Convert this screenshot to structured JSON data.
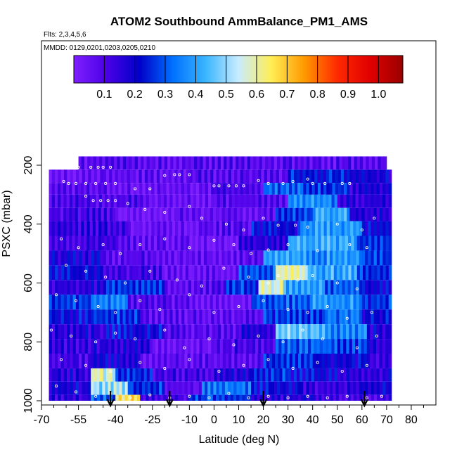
{
  "chart_data": {
    "type": "heatmap",
    "title": "ATOM2 Southbound AmmBalance_PM1_AMS",
    "subtitle_flights": "Flts: 2,3,4,5,6",
    "subtitle_dates": "MMDD: 0129,0201,0203,0205,0210",
    "xlabel": "Latitude (deg N)",
    "ylabel": "PSXC (mbar)",
    "xlim": [
      -70,
      90
    ],
    "ylim": [
      1000,
      0
    ],
    "x_ticks": [
      -70,
      -55,
      -40,
      -25,
      -10,
      0,
      10,
      20,
      30,
      40,
      50,
      60,
      70,
      80
    ],
    "x_minor_ticks": [
      -65,
      -60,
      -50,
      -45,
      -35,
      -30,
      -20,
      -15,
      -5,
      5,
      15,
      25,
      35,
      45,
      55,
      65,
      75,
      85
    ],
    "y_ticks": [
      200,
      400,
      600,
      800,
      1000
    ],
    "colorbar": {
      "min": 0.0,
      "max": 1.08,
      "ticks": [
        0.1,
        0.2,
        0.3,
        0.4,
        0.5,
        0.6,
        0.7,
        0.8,
        0.9,
        1.0
      ],
      "colors": [
        "#7f1fff",
        "#4a00e6",
        "#0000c8",
        "#0070ff",
        "#39b5ff",
        "#c8ecff",
        "#ffee55",
        "#ff9a00",
        "#ff2a00",
        "#e00000",
        "#9a0000"
      ]
    },
    "layers": [
      {
        "p_top": 170,
        "p_bot": 215,
        "lat_min": -55,
        "lat_max": 70,
        "segments": [
          [
            -55,
            70,
            0.12
          ]
        ]
      },
      {
        "p_top": 215,
        "p_bot": 260,
        "lat_min": -67,
        "lat_max": 72,
        "segments": [
          [
            -67,
            -45,
            0.08
          ],
          [
            -45,
            -10,
            0.1
          ],
          [
            -10,
            30,
            0.12
          ],
          [
            30,
            55,
            0.28
          ],
          [
            55,
            72,
            0.22
          ]
        ]
      },
      {
        "p_top": 260,
        "p_bot": 300,
        "lat_min": -67,
        "lat_max": 72,
        "segments": [
          [
            -67,
            -40,
            0.12
          ],
          [
            -40,
            0,
            0.09
          ],
          [
            0,
            20,
            0.15
          ],
          [
            20,
            35,
            0.35
          ],
          [
            35,
            55,
            0.3
          ],
          [
            55,
            72,
            0.2
          ]
        ]
      },
      {
        "p_top": 300,
        "p_bot": 345,
        "lat_min": -67,
        "lat_max": 72,
        "segments": [
          [
            -67,
            -30,
            0.14
          ],
          [
            -30,
            0,
            0.08
          ],
          [
            0,
            30,
            0.12
          ],
          [
            30,
            50,
            0.4
          ],
          [
            50,
            72,
            0.2
          ]
        ]
      },
      {
        "p_top": 345,
        "p_bot": 390,
        "lat_min": -67,
        "lat_max": 72,
        "segments": [
          [
            -67,
            -40,
            0.15
          ],
          [
            -40,
            -15,
            0.05
          ],
          [
            -15,
            25,
            0.1
          ],
          [
            25,
            40,
            0.3
          ],
          [
            40,
            55,
            0.45
          ],
          [
            55,
            72,
            0.2
          ]
        ]
      },
      {
        "p_top": 390,
        "p_bot": 440,
        "lat_min": -67,
        "lat_max": 72,
        "segments": [
          [
            -67,
            -35,
            0.18
          ],
          [
            -35,
            -5,
            0.08
          ],
          [
            -5,
            15,
            0.12
          ],
          [
            15,
            35,
            0.25
          ],
          [
            35,
            60,
            0.42
          ],
          [
            60,
            72,
            0.25
          ]
        ]
      },
      {
        "p_top": 440,
        "p_bot": 490,
        "lat_min": -67,
        "lat_max": 72,
        "segments": [
          [
            -67,
            -40,
            0.16
          ],
          [
            -40,
            -10,
            0.1
          ],
          [
            -10,
            10,
            0.06
          ],
          [
            10,
            30,
            0.2
          ],
          [
            30,
            58,
            0.45
          ],
          [
            58,
            72,
            0.3
          ]
        ]
      },
      {
        "p_top": 490,
        "p_bot": 540,
        "lat_min": -67,
        "lat_max": 72,
        "segments": [
          [
            -67,
            -45,
            0.22
          ],
          [
            -45,
            -15,
            0.12
          ],
          [
            -15,
            20,
            0.1
          ],
          [
            20,
            35,
            0.45
          ],
          [
            35,
            60,
            0.42
          ],
          [
            60,
            72,
            0.3
          ]
        ]
      },
      {
        "p_top": 540,
        "p_bot": 590,
        "lat_min": -67,
        "lat_max": 72,
        "segments": [
          [
            -67,
            -45,
            0.25
          ],
          [
            -45,
            -20,
            0.15
          ],
          [
            -20,
            10,
            0.1
          ],
          [
            10,
            25,
            0.35
          ],
          [
            25,
            38,
            0.62
          ],
          [
            38,
            58,
            0.45
          ],
          [
            58,
            72,
            0.3
          ]
        ]
      },
      {
        "p_top": 590,
        "p_bot": 640,
        "lat_min": -67,
        "lat_max": 72,
        "segments": [
          [
            -67,
            -45,
            0.2
          ],
          [
            -45,
            -20,
            0.3
          ],
          [
            -20,
            5,
            0.12
          ],
          [
            5,
            18,
            0.3
          ],
          [
            18,
            28,
            0.6
          ],
          [
            28,
            45,
            0.45
          ],
          [
            45,
            60,
            0.35
          ],
          [
            60,
            72,
            0.25
          ]
        ]
      },
      {
        "p_top": 640,
        "p_bot": 690,
        "lat_min": -67,
        "lat_max": 72,
        "segments": [
          [
            -67,
            -50,
            0.3
          ],
          [
            -50,
            -35,
            0.38
          ],
          [
            -35,
            -10,
            0.12
          ],
          [
            -10,
            15,
            0.08
          ],
          [
            15,
            40,
            0.35
          ],
          [
            40,
            60,
            0.42
          ],
          [
            60,
            72,
            0.3
          ]
        ]
      },
      {
        "p_top": 690,
        "p_bot": 740,
        "lat_min": -67,
        "lat_max": 72,
        "segments": [
          [
            -67,
            -50,
            0.25
          ],
          [
            -50,
            -30,
            0.3
          ],
          [
            -30,
            0,
            0.1
          ],
          [
            0,
            20,
            0.1
          ],
          [
            20,
            45,
            0.3
          ],
          [
            45,
            60,
            0.38
          ],
          [
            60,
            72,
            0.25
          ]
        ]
      },
      {
        "p_top": 740,
        "p_bot": 790,
        "lat_min": -67,
        "lat_max": 72,
        "segments": [
          [
            -67,
            -45,
            0.2
          ],
          [
            -45,
            -20,
            0.25
          ],
          [
            -20,
            10,
            0.12
          ],
          [
            10,
            25,
            0.2
          ],
          [
            25,
            45,
            0.5
          ],
          [
            45,
            62,
            0.4
          ],
          [
            62,
            72,
            0.22
          ]
        ]
      },
      {
        "p_top": 790,
        "p_bot": 840,
        "lat_min": -67,
        "lat_max": 72,
        "segments": [
          [
            -67,
            -50,
            0.18
          ],
          [
            -50,
            -25,
            0.2
          ],
          [
            -25,
            0,
            0.08
          ],
          [
            0,
            25,
            0.15
          ],
          [
            25,
            50,
            0.35
          ],
          [
            50,
            62,
            0.3
          ],
          [
            62,
            72,
            0.2
          ]
        ]
      },
      {
        "p_top": 840,
        "p_bot": 890,
        "lat_min": -67,
        "lat_max": 72,
        "segments": [
          [
            -67,
            -50,
            0.15
          ],
          [
            -50,
            -30,
            0.22
          ],
          [
            -30,
            0,
            0.1
          ],
          [
            0,
            20,
            0.12
          ],
          [
            20,
            40,
            0.3
          ],
          [
            40,
            62,
            0.25
          ],
          [
            62,
            72,
            0.18
          ]
        ]
      },
      {
        "p_top": 890,
        "p_bot": 935,
        "lat_min": -67,
        "lat_max": 72,
        "segments": [
          [
            -67,
            -50,
            0.2
          ],
          [
            -50,
            -40,
            0.62
          ],
          [
            -40,
            -25,
            0.3
          ],
          [
            -25,
            0,
            0.15
          ],
          [
            0,
            15,
            0.2
          ],
          [
            15,
            30,
            0.3
          ],
          [
            30,
            50,
            0.25
          ],
          [
            50,
            72,
            0.2
          ]
        ]
      },
      {
        "p_top": 935,
        "p_bot": 980,
        "lat_min": -67,
        "lat_max": 72,
        "segments": [
          [
            -67,
            -50,
            0.22
          ],
          [
            -50,
            -35,
            0.55
          ],
          [
            -35,
            -20,
            0.3
          ],
          [
            -20,
            -5,
            0.12
          ],
          [
            -5,
            15,
            0.38
          ],
          [
            15,
            35,
            0.25
          ],
          [
            35,
            60,
            0.18
          ],
          [
            60,
            72,
            0.22
          ]
        ]
      },
      {
        "p_top": 980,
        "p_bot": 1000,
        "lat_min": -67,
        "lat_max": 72,
        "segments": [
          [
            -67,
            -50,
            0.18
          ],
          [
            -50,
            -40,
            0.35
          ],
          [
            -40,
            -30,
            0.7
          ],
          [
            -30,
            -10,
            0.15
          ],
          [
            -10,
            15,
            0.3
          ],
          [
            15,
            40,
            0.2
          ],
          [
            40,
            72,
            0.15
          ]
        ]
      }
    ],
    "sample_points": [
      [
        -55,
        207
      ],
      [
        -50,
        207
      ],
      [
        -47,
        207
      ],
      [
        -45,
        207
      ],
      [
        -42,
        207
      ],
      [
        -61,
        255
      ],
      [
        -59,
        262
      ],
      [
        -56,
        262
      ],
      [
        -52,
        262
      ],
      [
        -48,
        262
      ],
      [
        -44,
        262
      ],
      [
        -40,
        262
      ],
      [
        -32,
        280
      ],
      [
        -26,
        280
      ],
      [
        -20,
        235
      ],
      [
        -16,
        232
      ],
      [
        -14,
        232
      ],
      [
        -10,
        232
      ],
      [
        0,
        270
      ],
      [
        2,
        270
      ],
      [
        6,
        270
      ],
      [
        9,
        270
      ],
      [
        12,
        270
      ],
      [
        18,
        252
      ],
      [
        22,
        262
      ],
      [
        28,
        262
      ],
      [
        32,
        255
      ],
      [
        38,
        247
      ],
      [
        40,
        262
      ],
      [
        45,
        262
      ],
      [
        52,
        262
      ],
      [
        55,
        262
      ],
      [
        -52,
        305
      ],
      [
        -49,
        320
      ],
      [
        -46,
        320
      ],
      [
        -43,
        320
      ],
      [
        -40,
        320
      ],
      [
        -35,
        330
      ],
      [
        -28,
        350
      ],
      [
        -20,
        360
      ],
      [
        -10,
        340
      ],
      [
        -5,
        380
      ],
      [
        5,
        400
      ],
      [
        12,
        420
      ],
      [
        20,
        380
      ],
      [
        26,
        404
      ],
      [
        33,
        404
      ],
      [
        38,
        410
      ],
      [
        50,
        400
      ],
      [
        60,
        420
      ],
      [
        65,
        380
      ],
      [
        -62,
        450
      ],
      [
        -55,
        480
      ],
      [
        -45,
        470
      ],
      [
        -38,
        500
      ],
      [
        -30,
        470
      ],
      [
        -20,
        450
      ],
      [
        -10,
        480
      ],
      [
        0,
        455
      ],
      [
        8,
        470
      ],
      [
        15,
        500
      ],
      [
        22,
        488
      ],
      [
        30,
        470
      ],
      [
        42,
        490
      ],
      [
        55,
        470
      ],
      [
        62,
        480
      ],
      [
        -60,
        540
      ],
      [
        -52,
        560
      ],
      [
        -44,
        580
      ],
      [
        -36,
        600
      ],
      [
        -26,
        560
      ],
      [
        -15,
        590
      ],
      [
        -5,
        610
      ],
      [
        4,
        550
      ],
      [
        14,
        580
      ],
      [
        22,
        600
      ],
      [
        26,
        575
      ],
      [
        34,
        590
      ],
      [
        40,
        575
      ],
      [
        50,
        600
      ],
      [
        58,
        620
      ],
      [
        -64,
        640
      ],
      [
        -56,
        660
      ],
      [
        -47,
        680
      ],
      [
        -40,
        700
      ],
      [
        -30,
        660
      ],
      [
        -22,
        690
      ],
      [
        -10,
        640
      ],
      [
        0,
        700
      ],
      [
        10,
        680
      ],
      [
        20,
        660
      ],
      [
        30,
        690
      ],
      [
        38,
        700
      ],
      [
        46,
        680
      ],
      [
        54,
        720
      ],
      [
        64,
        700
      ],
      [
        -66,
        760
      ],
      [
        -58,
        780
      ],
      [
        -48,
        800
      ],
      [
        -40,
        770
      ],
      [
        -32,
        790
      ],
      [
        -20,
        760
      ],
      [
        -12,
        820
      ],
      [
        -2,
        790
      ],
      [
        8,
        810
      ],
      [
        18,
        780
      ],
      [
        28,
        800
      ],
      [
        36,
        760
      ],
      [
        44,
        790
      ],
      [
        58,
        820
      ],
      [
        66,
        780
      ],
      [
        -62,
        860
      ],
      [
        -52,
        880
      ],
      [
        -42,
        900
      ],
      [
        -30,
        870
      ],
      [
        -20,
        890
      ],
      [
        -10,
        860
      ],
      [
        2,
        900
      ],
      [
        12,
        880
      ],
      [
        22,
        860
      ],
      [
        32,
        890
      ],
      [
        42,
        870
      ],
      [
        52,
        900
      ],
      [
        62,
        880
      ],
      [
        -64,
        950
      ],
      [
        -56,
        970
      ],
      [
        -48,
        985
      ],
      [
        -42,
        975
      ],
      [
        -34,
        990
      ],
      [
        -26,
        980
      ],
      [
        -18,
        990
      ],
      [
        -10,
        985
      ],
      [
        -2,
        990
      ],
      [
        6,
        975
      ],
      [
        14,
        990
      ],
      [
        22,
        985
      ],
      [
        30,
        990
      ],
      [
        38,
        985
      ],
      [
        46,
        990
      ],
      [
        54,
        985
      ],
      [
        62,
        990
      ],
      [
        68,
        985
      ]
    ],
    "arrows_lat": [
      -42,
      -18,
      20,
      61
    ]
  }
}
